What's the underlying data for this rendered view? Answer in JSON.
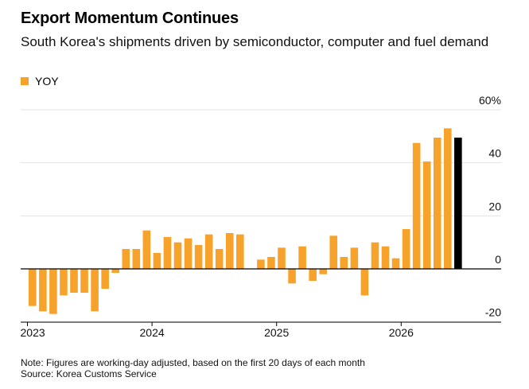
{
  "title": "Export Momentum Continues",
  "subtitle": "South Korea's shipments driven by semiconductor, computer and fuel demand",
  "legend": {
    "label": "YOY"
  },
  "colors": {
    "bar": "#f7a32b",
    "last_bar": "#000000",
    "grid": "#e3e3e3",
    "axis": "#000000"
  },
  "note": "Note: Figures are working-day adjusted, based on the first 20 days of each month",
  "source": "Source: Korea Customs Service",
  "chart_data": {
    "type": "bar",
    "y_ticks": [
      "60%",
      "40",
      "20",
      "0",
      "-20"
    ],
    "y_tick_values": [
      60,
      40,
      20,
      0,
      -20
    ],
    "x_ticks": [
      {
        "label": "2023",
        "index": 0
      },
      {
        "label": "2024",
        "index": 12
      },
      {
        "label": "2025",
        "index": 24
      },
      {
        "label": "2026",
        "index": 36
      }
    ],
    "ylim": [
      -20,
      60
    ],
    "series": [
      {
        "name": "YOY",
        "values": [
          -14,
          -16,
          -17,
          -10,
          -9,
          -9,
          -16,
          -7.5,
          -1.5,
          7.5,
          7.5,
          14.5,
          6,
          12,
          10,
          11.5,
          9,
          13,
          7.5,
          13.5,
          13,
          0,
          3.5,
          4.5,
          8,
          -5.5,
          8.5,
          -4.5,
          -2,
          12.5,
          4.5,
          8,
          -10,
          10,
          8.5,
          4,
          15,
          47.5,
          40.5,
          49.5,
          53,
          49.5
        ]
      }
    ]
  }
}
